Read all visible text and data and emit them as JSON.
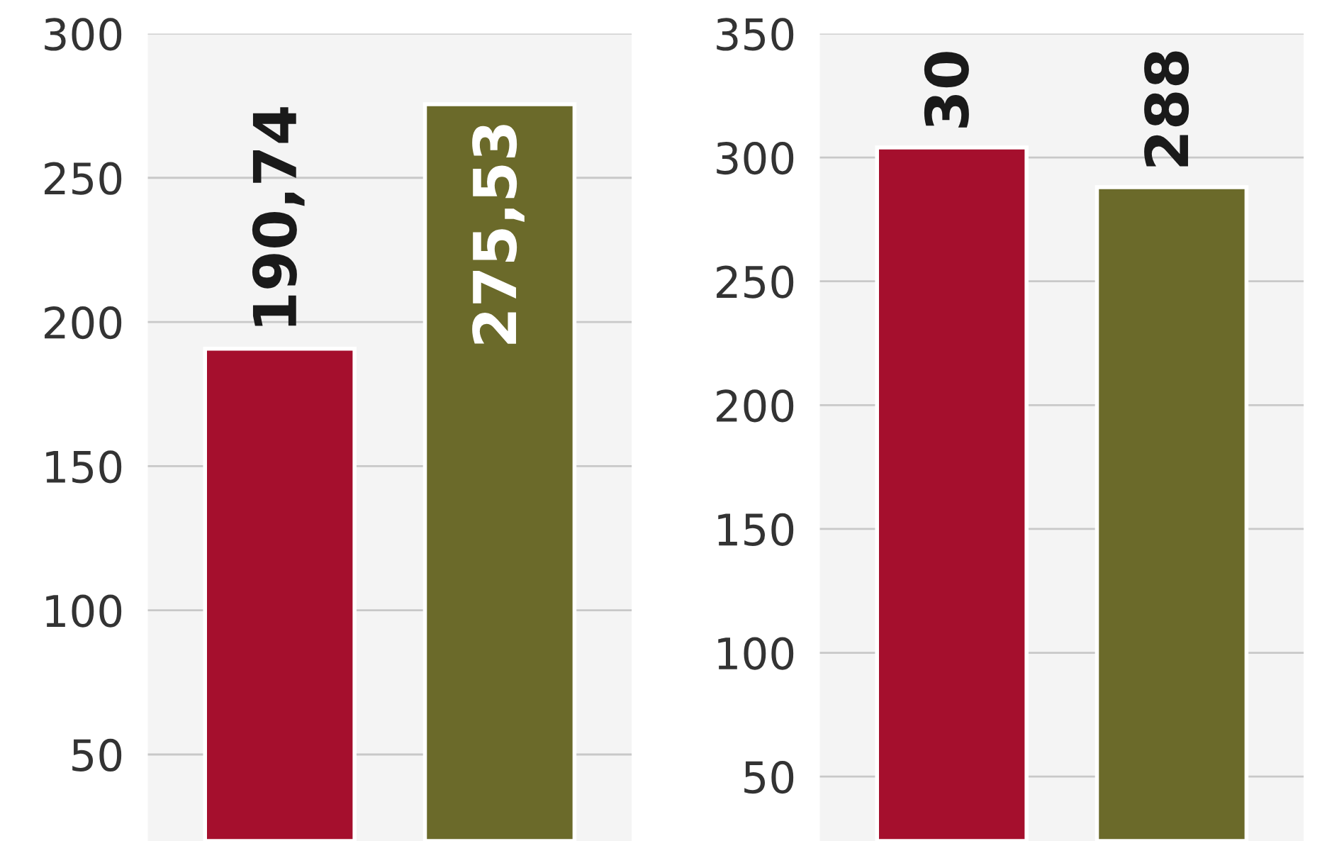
{
  "chart_data": [
    {
      "type": "bar",
      "categories": [
        null,
        null
      ],
      "series": [
        {
          "color": "#a50f2d",
          "values": [
            190.74,
            null
          ],
          "value_labels": [
            "190,74",
            null
          ]
        },
        {
          "color": "#6b6a2a",
          "values": [
            null,
            275.53
          ],
          "value_labels": [
            null,
            "275,53"
          ]
        }
      ],
      "ylim": [
        20,
        300
      ],
      "yticks": [
        50,
        100,
        150,
        200,
        250,
        300
      ],
      "grid": "y"
    },
    {
      "type": "bar",
      "categories": [
        null,
        null
      ],
      "series": [
        {
          "color": "#a50f2d",
          "values": [
            304,
            null
          ],
          "value_labels": [
            null,
            null
          ]
        },
        {
          "color": "#6b6a2a",
          "values": [
            null,
            288
          ],
          "value_labels": [
            null,
            "288"
          ]
        }
      ],
      "ylim": [
        24,
        350
      ],
      "yticks": [
        50,
        100,
        150,
        200,
        250,
        300,
        350
      ],
      "grid": "y",
      "annotations": [
        "30"
      ]
    }
  ]
}
